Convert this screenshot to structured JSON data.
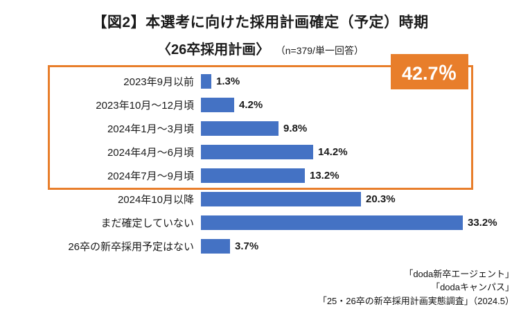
{
  "title": {
    "line1": "【図2】本選考に向けた採用計画確定（予定）時期",
    "line2_main": "〈26卒採用計画〉",
    "line2_note": "（n=379/単一回答）"
  },
  "colors": {
    "bar": "#4472C4",
    "accent": "#E87E2B"
  },
  "highlight": {
    "badge_label": "42.7％",
    "rows_covered": [
      0,
      1,
      2,
      3,
      4
    ]
  },
  "chart_data": {
    "type": "bar",
    "orientation": "horizontal",
    "title": "【図2】本選考に向けた採用計画確定（予定）時期〈26卒採用計画〉",
    "subtitle": "（n=379/単一回答）",
    "xlabel": "",
    "ylabel": "",
    "xlim": [
      0,
      36
    ],
    "grid": false,
    "legend": false,
    "categories": [
      "2023年9月以前",
      "2023年10月～12月頃",
      "2024年1月～3月頃",
      "2024年4月～6月頃",
      "2024年7月～9月頃",
      "2024年10月以降",
      "まだ確定していない",
      "26卒の新卒採用予定はない"
    ],
    "values": [
      1.3,
      4.2,
      9.8,
      14.2,
      13.2,
      20.3,
      33.2,
      3.7
    ],
    "value_labels": [
      "1.3%",
      "4.2%",
      "9.8%",
      "14.2%",
      "13.2%",
      "20.3%",
      "33.2%",
      "3.7%"
    ],
    "annotations": [
      {
        "text": "42.7％",
        "meaning": "sum of first five categories",
        "color": "#E87E2B"
      }
    ]
  },
  "footer": {
    "lines": [
      "「doda新卒エージェント」",
      "「dodaキャンパス」",
      "「25・26卒の新卒採用計画実態調査」（2024.5）"
    ]
  }
}
